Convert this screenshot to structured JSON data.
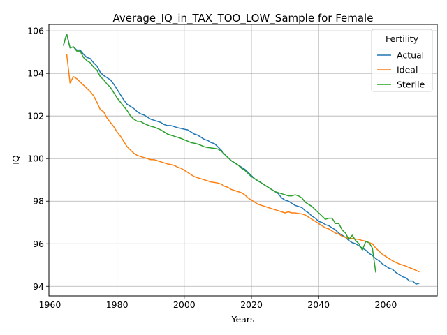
{
  "chart_data": {
    "type": "line",
    "title": "Average_IQ_in_TAX_TOO_LOW_Sample for Female",
    "xlabel": "Years",
    "ylabel": "IQ",
    "xlim": [
      1959.7,
      2075.3
    ],
    "ylim": [
      93.55,
      106.3
    ],
    "xticks": [
      1960,
      1980,
      2000,
      2020,
      2040,
      2060
    ],
    "yticks": [
      94,
      96,
      98,
      100,
      102,
      104,
      106
    ],
    "grid": true,
    "legend": {
      "title": "Fertility",
      "placement": "top-right"
    },
    "series": [
      {
        "name": "Actual",
        "color": "#1f77b4",
        "points": [
          [
            1964,
            105.3
          ],
          [
            1965,
            105.85
          ],
          [
            1966,
            105.2
          ],
          [
            1967,
            105.25
          ],
          [
            1968,
            105.1
          ],
          [
            1969,
            105.1
          ],
          [
            1970,
            104.9
          ],
          [
            1971,
            104.75
          ],
          [
            1972,
            104.7
          ],
          [
            1973,
            104.5
          ],
          [
            1974,
            104.35
          ],
          [
            1975,
            104.05
          ],
          [
            1976,
            103.9
          ],
          [
            1977,
            103.8
          ],
          [
            1978,
            103.7
          ],
          [
            1979,
            103.5
          ],
          [
            1980,
            103.25
          ],
          [
            1981,
            103.0
          ],
          [
            1982,
            102.75
          ],
          [
            1983,
            102.55
          ],
          [
            1984,
            102.45
          ],
          [
            1985,
            102.35
          ],
          [
            1986,
            102.2
          ],
          [
            1987,
            102.1
          ],
          [
            1988,
            102.05
          ],
          [
            1989,
            101.95
          ],
          [
            1990,
            101.85
          ],
          [
            1991,
            101.8
          ],
          [
            1992,
            101.75
          ],
          [
            1993,
            101.7
          ],
          [
            1994,
            101.6
          ],
          [
            1995,
            101.55
          ],
          [
            1996,
            101.55
          ],
          [
            1997,
            101.5
          ],
          [
            1998,
            101.45
          ],
          [
            1999,
            101.42
          ],
          [
            2000,
            101.38
          ],
          [
            2001,
            101.35
          ],
          [
            2002,
            101.25
          ],
          [
            2003,
            101.15
          ],
          [
            2004,
            101.1
          ],
          [
            2005,
            101.0
          ],
          [
            2006,
            100.9
          ],
          [
            2007,
            100.85
          ],
          [
            2008,
            100.75
          ],
          [
            2009,
            100.7
          ],
          [
            2010,
            100.55
          ],
          [
            2011,
            100.4
          ],
          [
            2012,
            100.2
          ],
          [
            2013,
            100.05
          ],
          [
            2014,
            99.9
          ],
          [
            2015,
            99.8
          ],
          [
            2016,
            99.7
          ],
          [
            2017,
            99.6
          ],
          [
            2018,
            99.5
          ],
          [
            2019,
            99.35
          ],
          [
            2020,
            99.2
          ],
          [
            2021,
            99.05
          ],
          [
            2022,
            98.95
          ],
          [
            2023,
            98.85
          ],
          [
            2024,
            98.75
          ],
          [
            2025,
            98.65
          ],
          [
            2026,
            98.55
          ],
          [
            2027,
            98.45
          ],
          [
            2028,
            98.35
          ],
          [
            2029,
            98.15
          ],
          [
            2030,
            98.05
          ],
          [
            2031,
            98.0
          ],
          [
            2032,
            97.9
          ],
          [
            2033,
            97.8
          ],
          [
            2034,
            97.75
          ],
          [
            2035,
            97.7
          ],
          [
            2036,
            97.55
          ],
          [
            2037,
            97.45
          ],
          [
            2038,
            97.3
          ],
          [
            2039,
            97.2
          ],
          [
            2040,
            97.05
          ],
          [
            2041,
            97.0
          ],
          [
            2042,
            96.9
          ],
          [
            2043,
            96.85
          ],
          [
            2044,
            96.75
          ],
          [
            2045,
            96.65
          ],
          [
            2046,
            96.5
          ],
          [
            2047,
            96.4
          ],
          [
            2048,
            96.3
          ],
          [
            2049,
            96.15
          ],
          [
            2050,
            96.05
          ],
          [
            2051,
            96.0
          ],
          [
            2052,
            95.9
          ],
          [
            2053,
            95.8
          ],
          [
            2054,
            95.7
          ],
          [
            2055,
            95.55
          ],
          [
            2056,
            95.45
          ],
          [
            2057,
            95.3
          ],
          [
            2058,
            95.2
          ],
          [
            2059,
            95.05
          ],
          [
            2060,
            94.95
          ],
          [
            2061,
            94.85
          ],
          [
            2062,
            94.8
          ],
          [
            2063,
            94.65
          ],
          [
            2064,
            94.55
          ],
          [
            2065,
            94.45
          ],
          [
            2066,
            94.4
          ],
          [
            2067,
            94.25
          ],
          [
            2068,
            94.25
          ],
          [
            2069,
            94.1
          ],
          [
            2070,
            94.15
          ]
        ]
      },
      {
        "name": "Ideal",
        "color": "#ff7f0e",
        "points": [
          [
            1965,
            104.9
          ],
          [
            1966,
            103.55
          ],
          [
            1967,
            103.85
          ],
          [
            1968,
            103.75
          ],
          [
            1969,
            103.6
          ],
          [
            1970,
            103.45
          ],
          [
            1971,
            103.3
          ],
          [
            1972,
            103.15
          ],
          [
            1973,
            102.95
          ],
          [
            1974,
            102.65
          ],
          [
            1975,
            102.3
          ],
          [
            1976,
            102.2
          ],
          [
            1977,
            101.9
          ],
          [
            1978,
            101.7
          ],
          [
            1979,
            101.5
          ],
          [
            1980,
            101.25
          ],
          [
            1981,
            101.05
          ],
          [
            1982,
            100.8
          ],
          [
            1983,
            100.55
          ],
          [
            1984,
            100.4
          ],
          [
            1985,
            100.25
          ],
          [
            1986,
            100.15
          ],
          [
            1987,
            100.1
          ],
          [
            1988,
            100.05
          ],
          [
            1989,
            100.0
          ],
          [
            1990,
            99.95
          ],
          [
            1991,
            99.95
          ],
          [
            1992,
            99.9
          ],
          [
            1993,
            99.85
          ],
          [
            1994,
            99.8
          ],
          [
            1995,
            99.75
          ],
          [
            1996,
            99.72
          ],
          [
            1997,
            99.68
          ],
          [
            1998,
            99.6
          ],
          [
            1999,
            99.55
          ],
          [
            2000,
            99.45
          ],
          [
            2001,
            99.35
          ],
          [
            2002,
            99.25
          ],
          [
            2003,
            99.15
          ],
          [
            2004,
            99.1
          ],
          [
            2005,
            99.05
          ],
          [
            2006,
            99.0
          ],
          [
            2007,
            98.95
          ],
          [
            2008,
            98.9
          ],
          [
            2009,
            98.88
          ],
          [
            2010,
            98.85
          ],
          [
            2011,
            98.8
          ],
          [
            2012,
            98.7
          ],
          [
            2013,
            98.65
          ],
          [
            2014,
            98.55
          ],
          [
            2015,
            98.5
          ],
          [
            2016,
            98.45
          ],
          [
            2017,
            98.4
          ],
          [
            2018,
            98.3
          ],
          [
            2019,
            98.15
          ],
          [
            2020,
            98.05
          ],
          [
            2021,
            97.95
          ],
          [
            2022,
            97.85
          ],
          [
            2023,
            97.8
          ],
          [
            2024,
            97.75
          ],
          [
            2025,
            97.7
          ],
          [
            2026,
            97.65
          ],
          [
            2027,
            97.6
          ],
          [
            2028,
            97.55
          ],
          [
            2029,
            97.5
          ],
          [
            2030,
            97.45
          ],
          [
            2031,
            97.5
          ],
          [
            2032,
            97.45
          ],
          [
            2033,
            97.45
          ],
          [
            2034,
            97.42
          ],
          [
            2035,
            97.4
          ],
          [
            2036,
            97.35
          ],
          [
            2037,
            97.25
          ],
          [
            2038,
            97.15
          ],
          [
            2039,
            97.05
          ],
          [
            2040,
            96.95
          ],
          [
            2041,
            96.85
          ],
          [
            2042,
            96.75
          ],
          [
            2043,
            96.7
          ],
          [
            2044,
            96.6
          ],
          [
            2045,
            96.5
          ],
          [
            2046,
            96.45
          ],
          [
            2047,
            96.35
          ],
          [
            2048,
            96.3
          ],
          [
            2049,
            96.25
          ],
          [
            2050,
            96.25
          ],
          [
            2051,
            96.22
          ],
          [
            2052,
            96.2
          ],
          [
            2053,
            96.15
          ],
          [
            2054,
            96.12
          ],
          [
            2055,
            96.05
          ],
          [
            2056,
            96.0
          ],
          [
            2057,
            95.8
          ],
          [
            2058,
            95.65
          ],
          [
            2059,
            95.5
          ],
          [
            2060,
            95.4
          ],
          [
            2061,
            95.3
          ],
          [
            2062,
            95.2
          ],
          [
            2063,
            95.12
          ],
          [
            2064,
            95.05
          ],
          [
            2065,
            95.0
          ],
          [
            2066,
            94.95
          ],
          [
            2067,
            94.88
          ],
          [
            2068,
            94.82
          ],
          [
            2069,
            94.75
          ],
          [
            2070,
            94.68
          ]
        ]
      },
      {
        "name": "Sterile",
        "color": "#2ca02c",
        "points": [
          [
            1964,
            105.3
          ],
          [
            1965,
            105.85
          ],
          [
            1966,
            105.2
          ],
          [
            1967,
            105.25
          ],
          [
            1968,
            105.05
          ],
          [
            1969,
            105.05
          ],
          [
            1970,
            104.75
          ],
          [
            1971,
            104.6
          ],
          [
            1972,
            104.5
          ],
          [
            1973,
            104.3
          ],
          [
            1974,
            104.15
          ],
          [
            1975,
            103.85
          ],
          [
            1976,
            103.7
          ],
          [
            1977,
            103.5
          ],
          [
            1978,
            103.35
          ],
          [
            1979,
            103.1
          ],
          [
            1980,
            102.85
          ],
          [
            1981,
            102.65
          ],
          [
            1982,
            102.45
          ],
          [
            1983,
            102.25
          ],
          [
            1984,
            102.0
          ],
          [
            1985,
            101.85
          ],
          [
            1986,
            101.75
          ],
          [
            1987,
            101.75
          ],
          [
            1988,
            101.65
          ],
          [
            1989,
            101.58
          ],
          [
            1990,
            101.52
          ],
          [
            1991,
            101.48
          ],
          [
            1992,
            101.42
          ],
          [
            1993,
            101.35
          ],
          [
            1994,
            101.25
          ],
          [
            1995,
            101.15
          ],
          [
            1996,
            101.1
          ],
          [
            1997,
            101.05
          ],
          [
            1998,
            101.0
          ],
          [
            1999,
            100.95
          ],
          [
            2000,
            100.88
          ],
          [
            2001,
            100.82
          ],
          [
            2002,
            100.75
          ],
          [
            2003,
            100.72
          ],
          [
            2004,
            100.68
          ],
          [
            2005,
            100.62
          ],
          [
            2006,
            100.55
          ],
          [
            2007,
            100.52
          ],
          [
            2008,
            100.5
          ],
          [
            2009,
            100.48
          ],
          [
            2010,
            100.45
          ],
          [
            2011,
            100.35
          ],
          [
            2012,
            100.2
          ],
          [
            2013,
            100.05
          ],
          [
            2014,
            99.9
          ],
          [
            2015,
            99.8
          ],
          [
            2016,
            99.7
          ],
          [
            2017,
            99.55
          ],
          [
            2018,
            99.45
          ],
          [
            2019,
            99.3
          ],
          [
            2020,
            99.15
          ],
          [
            2021,
            99.05
          ],
          [
            2022,
            98.95
          ],
          [
            2023,
            98.85
          ],
          [
            2024,
            98.75
          ],
          [
            2025,
            98.65
          ],
          [
            2026,
            98.55
          ],
          [
            2027,
            98.45
          ],
          [
            2028,
            98.4
          ],
          [
            2029,
            98.35
          ],
          [
            2030,
            98.3
          ],
          [
            2031,
            98.25
          ],
          [
            2032,
            98.25
          ],
          [
            2033,
            98.3
          ],
          [
            2034,
            98.25
          ],
          [
            2035,
            98.15
          ],
          [
            2036,
            97.95
          ],
          [
            2037,
            97.85
          ],
          [
            2038,
            97.75
          ],
          [
            2039,
            97.6
          ],
          [
            2040,
            97.45
          ],
          [
            2041,
            97.3
          ],
          [
            2042,
            97.15
          ],
          [
            2043,
            97.2
          ],
          [
            2044,
            97.2
          ],
          [
            2045,
            96.95
          ],
          [
            2046,
            96.95
          ],
          [
            2047,
            96.65
          ],
          [
            2048,
            96.5
          ],
          [
            2049,
            96.2
          ],
          [
            2050,
            96.4
          ],
          [
            2051,
            96.15
          ],
          [
            2052,
            96.0
          ],
          [
            2053,
            95.7
          ],
          [
            2054,
            96.1
          ],
          [
            2055,
            96.05
          ],
          [
            2056,
            95.8
          ],
          [
            2057,
            94.65
          ]
        ]
      }
    ]
  }
}
